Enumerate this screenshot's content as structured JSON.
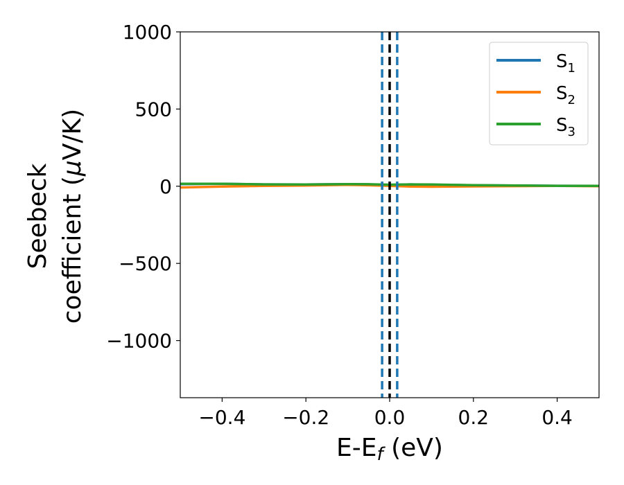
{
  "chart_data": {
    "type": "line",
    "xlabel_main": "E-E",
    "xlabel_sub": "f",
    "xlabel_unit": " (eV)",
    "ylabel_line1": "Seebeck",
    "ylabel_line2_prefix": "coefficient  (",
    "ylabel_mu": "μ",
    "ylabel_line2_suffix": "V/K)",
    "xlim": [
      -0.5,
      0.5
    ],
    "ylim": [
      -1370,
      1000
    ],
    "x_ticks": [
      -0.4,
      -0.2,
      0.0,
      0.2,
      0.4
    ],
    "x_tick_labels": [
      "−0.4",
      "−0.2",
      "0.0",
      "0.2",
      "0.4"
    ],
    "y_ticks": [
      1000,
      500,
      0,
      -500,
      -1000
    ],
    "y_tick_labels": [
      "1000",
      "500",
      "0",
      "−500",
      "−1000"
    ],
    "legend_position": "top-right",
    "grid": false,
    "series": [
      {
        "name_main": "S",
        "name_sub": "1",
        "color": "#1f77b4",
        "x": [
          -0.5,
          -0.4,
          -0.3,
          -0.2,
          -0.1,
          -0.05,
          0.0,
          0.05,
          0.1,
          0.2,
          0.3,
          0.4,
          0.5
        ],
        "values": [
          14,
          16,
          12,
          11,
          14,
          12,
          9,
          12,
          10,
          6,
          5,
          3,
          2
        ]
      },
      {
        "name_main": "S",
        "name_sub": "2",
        "color": "#ff7f0e",
        "x": [
          -0.5,
          -0.4,
          -0.3,
          -0.2,
          -0.1,
          -0.05,
          0.0,
          0.05,
          0.1,
          0.2,
          0.3,
          0.4,
          0.5
        ],
        "values": [
          -8,
          -2,
          2,
          5,
          9,
          6,
          2,
          -2,
          -3,
          -1,
          1,
          2,
          0
        ]
      },
      {
        "name_main": "S",
        "name_sub": "3",
        "color": "#2ca02c",
        "x": [
          -0.5,
          -0.4,
          -0.3,
          -0.2,
          -0.1,
          -0.05,
          0.0,
          0.05,
          0.1,
          0.2,
          0.3,
          0.4,
          0.5
        ],
        "values": [
          16,
          16,
          12,
          11,
          14,
          13,
          10,
          12,
          11,
          7,
          5,
          2,
          2
        ]
      }
    ],
    "vertical_lines": [
      {
        "x": -0.018,
        "color": "#1f77b4",
        "style": "dashed"
      },
      {
        "x": 0.018,
        "color": "#1f77b4",
        "style": "dashed"
      },
      {
        "x": 0.0,
        "color": "#000000",
        "style": "dashed"
      }
    ]
  }
}
